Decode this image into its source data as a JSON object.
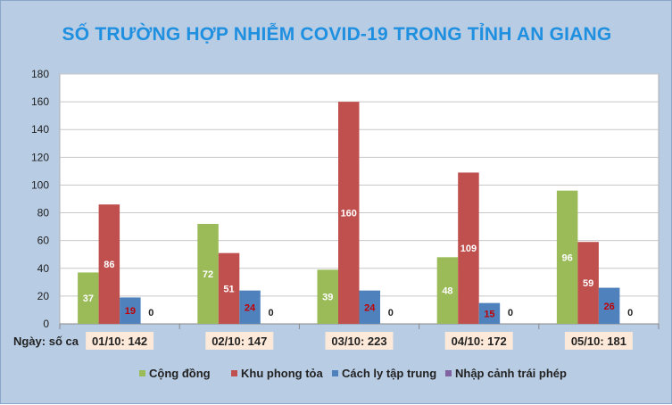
{
  "chart_data": {
    "type": "bar",
    "title": "SỐ TRƯỜNG HỢP NHIỄM COVID-19 TRONG TỈNH AN GIANG",
    "xlabel": "Ngày: số ca",
    "ylabel": "",
    "ylim": [
      0,
      180
    ],
    "yticks": [
      0,
      20,
      40,
      60,
      80,
      100,
      120,
      140,
      160,
      180
    ],
    "categories": [
      "01/10: 142",
      "02/10: 147",
      "03/10: 223",
      "04/10: 172",
      "05/10: 181"
    ],
    "series": [
      {
        "name": "Cộng đồng",
        "color": "#9bbb59",
        "label_color": "#ffffff",
        "values": [
          37,
          72,
          39,
          48,
          96
        ]
      },
      {
        "name": "Khu phong tỏa",
        "color": "#c0504d",
        "label_color": "#ffffff",
        "values": [
          86,
          51,
          160,
          109,
          59
        ]
      },
      {
        "name": "Cách ly tập trung",
        "color": "#4f81bd",
        "label_color": "#c00000",
        "values": [
          19,
          24,
          24,
          15,
          26
        ]
      },
      {
        "name": "Nhập cảnh trái phép",
        "color": "#8064a2",
        "label_color": "#222222",
        "values": [
          0,
          0,
          0,
          0,
          0
        ]
      }
    ],
    "grid": true,
    "legend_position": "bottom",
    "colors": {
      "background": "#b8cce4",
      "plot_area": "#ffffff",
      "title": "#1f8fe0",
      "category_label_bg": "#fde9d9"
    }
  }
}
